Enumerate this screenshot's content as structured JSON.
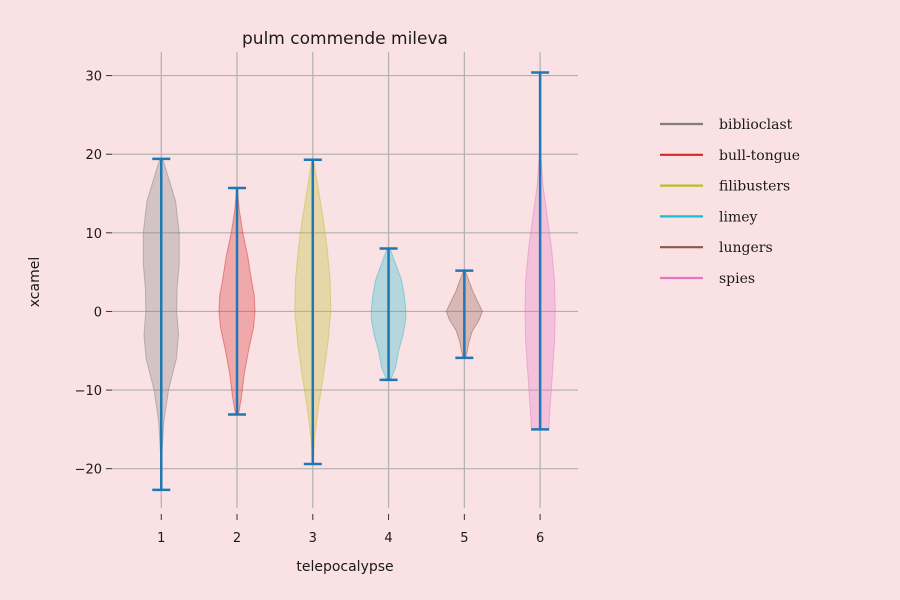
{
  "chart_data": {
    "type": "violin",
    "title": "pulm commende mileva",
    "xlabel": "telepocalypse",
    "ylabel": "xcamel",
    "categories": [
      "1",
      "2",
      "3",
      "4",
      "5",
      "6"
    ],
    "xlim": [
      0.35,
      6.5
    ],
    "ylim": [
      -25,
      33
    ],
    "yticks": [
      -20,
      -10,
      0,
      10,
      20,
      30
    ],
    "grid": true,
    "legend_position": "right",
    "whisker_color": "#1f77b4",
    "series": [
      {
        "name": "biblioclast",
        "x": 1,
        "color": "#7f7f7f",
        "min": -22.7,
        "max": 19.4,
        "density": [
          [
            -22.7,
            0.002
          ],
          [
            -18,
            0.01
          ],
          [
            -14,
            0.035
          ],
          [
            -10,
            0.1
          ],
          [
            -6,
            0.21
          ],
          [
            -3,
            0.24
          ],
          [
            0,
            0.215
          ],
          [
            3,
            0.22
          ],
          [
            6,
            0.25
          ],
          [
            10,
            0.25
          ],
          [
            14,
            0.2
          ],
          [
            17,
            0.1
          ],
          [
            19.4,
            0.02
          ]
        ]
      },
      {
        "name": "bull-tongue",
        "x": 2,
        "color": "#d62728",
        "min": -13.1,
        "max": 15.7,
        "density": [
          [
            -13.1,
            0.02
          ],
          [
            -11,
            0.06
          ],
          [
            -8,
            0.1
          ],
          [
            -5,
            0.16
          ],
          [
            -2,
            0.23
          ],
          [
            0,
            0.25
          ],
          [
            2,
            0.24
          ],
          [
            4,
            0.2
          ],
          [
            7,
            0.15
          ],
          [
            10,
            0.08
          ],
          [
            13,
            0.03
          ],
          [
            15.7,
            0.005
          ]
        ]
      },
      {
        "name": "filibusters",
        "x": 3,
        "color": "#bcbd22",
        "min": -19.4,
        "max": 19.3,
        "density": [
          [
            -19.4,
            0.005
          ],
          [
            -16,
            0.025
          ],
          [
            -12,
            0.08
          ],
          [
            -8,
            0.15
          ],
          [
            -4,
            0.21
          ],
          [
            0,
            0.25
          ],
          [
            4,
            0.24
          ],
          [
            8,
            0.2
          ],
          [
            12,
            0.14
          ],
          [
            16,
            0.07
          ],
          [
            19.3,
            0.01
          ]
        ]
      },
      {
        "name": "limey",
        "x": 4,
        "color": "#17becf",
        "min": -8.7,
        "max": 8.0,
        "density": [
          [
            -8.7,
            0.03
          ],
          [
            -7,
            0.1
          ],
          [
            -5,
            0.14
          ],
          [
            -3,
            0.2
          ],
          [
            -1,
            0.24
          ],
          [
            0,
            0.24
          ],
          [
            2,
            0.22
          ],
          [
            4,
            0.18
          ],
          [
            6,
            0.1
          ],
          [
            8.0,
            0.02
          ]
        ]
      },
      {
        "name": "lungers",
        "x": 5,
        "color": "#8c564b",
        "min": -5.9,
        "max": 5.2,
        "density": [
          [
            -5.9,
            0.02
          ],
          [
            -5,
            0.04
          ],
          [
            -4,
            0.06
          ],
          [
            -2.5,
            0.11
          ],
          [
            -1,
            0.21
          ],
          [
            0,
            0.25
          ],
          [
            1,
            0.2
          ],
          [
            2.5,
            0.12
          ],
          [
            3.5,
            0.08
          ],
          [
            5.2,
            0.01
          ]
        ]
      },
      {
        "name": "spies",
        "x": 6,
        "color": "#e377c2",
        "min": -15.0,
        "max": 30.4,
        "density": [
          [
            -15,
            0.12
          ],
          [
            -12,
            0.14
          ],
          [
            -8,
            0.17
          ],
          [
            -4,
            0.2
          ],
          [
            0,
            0.21
          ],
          [
            4,
            0.2
          ],
          [
            8,
            0.16
          ],
          [
            12,
            0.1
          ],
          [
            16,
            0.04
          ],
          [
            20,
            0.01
          ],
          [
            25,
            0.001
          ],
          [
            30.4,
            0.0005
          ]
        ]
      }
    ]
  }
}
